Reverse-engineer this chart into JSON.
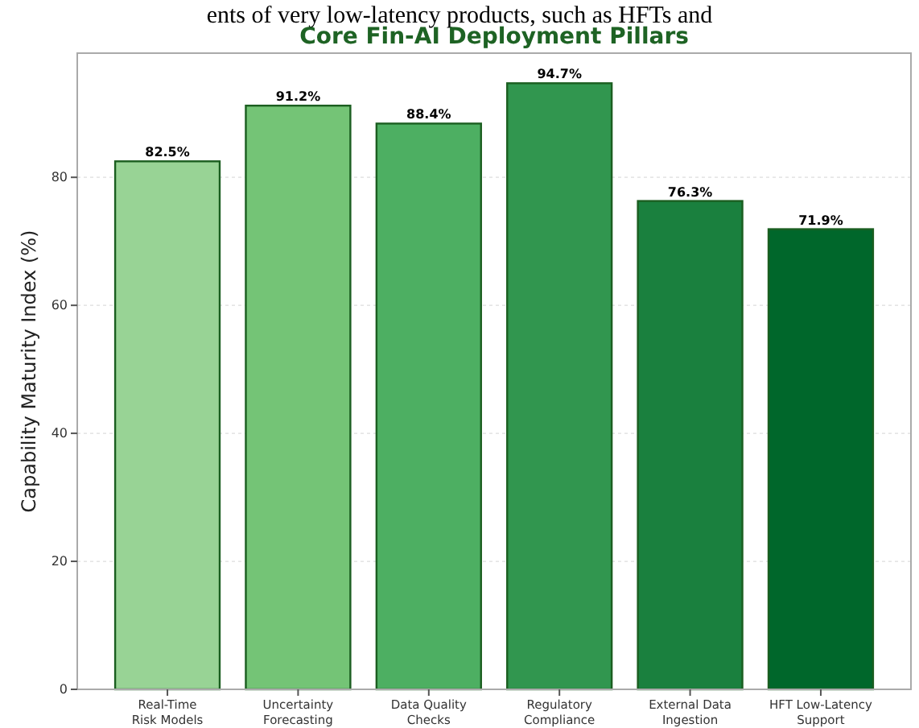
{
  "chart_data": {
    "type": "bar",
    "title": "Core Fin-AI Deployment Pillars",
    "ylabel": "Capability Maturity Index (%)",
    "annotations": [
      "ents of very low-latency products, such as HFTs and"
    ],
    "categories": [
      "Real-Time\nRisk Models",
      "Uncertainty\nForecasting",
      "Data Quality\nChecks",
      "Regulatory\nCompliance",
      "External Data\nIngestion",
      "HFT Low-Latency\nSupport"
    ],
    "values": [
      82.5,
      91.2,
      88.4,
      94.7,
      76.3,
      71.9
    ],
    "colors": [
      "#98d395",
      "#74c476",
      "#4daf62",
      "#31964f",
      "#1a803e",
      "#00672b"
    ],
    "value_labels": [
      "82.5%",
      "91.2%",
      "88.4%",
      "94.7%",
      "76.3%",
      "71.9%"
    ],
    "ylim": [
      0,
      99.4
    ],
    "yticks": [
      0,
      20,
      40,
      60,
      80
    ],
    "grid": "y"
  }
}
